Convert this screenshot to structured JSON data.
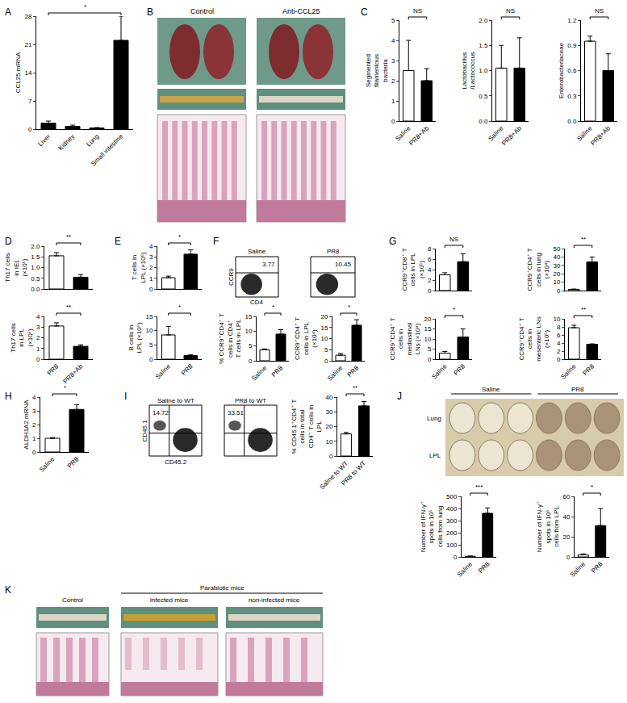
{
  "chart_data": [
    {
      "type": "bar",
      "y_label": "CCL25 mRNA",
      "categories": [
        "Liver",
        "Kidney",
        "Lung",
        "Small intestine"
      ],
      "values": [
        1.5,
        0.7,
        0.3,
        22
      ],
      "errors": [
        0.5,
        0.3,
        0.1,
        6
      ],
      "color": "#000000",
      "ylim": [
        0,
        28
      ],
      "yticks": [
        0,
        7,
        14,
        21,
        28
      ],
      "annotations": [
        "*"
      ]
    },
    {
      "type": "bar",
      "y_label": "Segmented filamentous bacteria",
      "categories": [
        "Saline",
        "PR8+Ab"
      ],
      "values": [
        2.5,
        2.0
      ],
      "errors": [
        1.5,
        0.6
      ],
      "colors": [
        "#ffffff",
        "#000000"
      ],
      "ylim": [
        0,
        5
      ],
      "yticks": [
        0,
        1,
        2,
        3,
        4,
        5
      ],
      "annotations": [
        "NS"
      ]
    },
    {
      "type": "bar",
      "y_label": "Lactobacillus/Lactococcus",
      "categories": [
        "Saline",
        "PR8+Ab"
      ],
      "values": [
        1.05,
        1.05
      ],
      "errors": [
        0.45,
        0.6
      ],
      "colors": [
        "#ffffff",
        "#000000"
      ],
      "ylim": [
        0,
        2
      ],
      "yticks": [
        {
          "value": 0,
          "label": "0.0"
        },
        0.5,
        {
          "value": 1,
          "label": "1.0"
        },
        1.5,
        {
          "value": 2,
          "label": "2.0"
        }
      ],
      "annotations": [
        "NS"
      ]
    },
    {
      "type": "bar",
      "y_label": "Enterobacteriaceae",
      "categories": [
        "Saline",
        "PR8+Ab"
      ],
      "values": [
        0.95,
        0.6
      ],
      "errors": [
        0.06,
        0.2
      ],
      "colors": [
        "#ffffff",
        "#000000"
      ],
      "ylim": [
        0,
        1.2
      ],
      "yticks": [
        {
          "value": 0,
          "label": "0.0"
        },
        0.3,
        0.6,
        0.9,
        1.2
      ],
      "annotations": [
        "NS"
      ]
    },
    {
      "type": "bar",
      "y_label": "Th17 cells in IEL (×10⁵)",
      "categories": [
        "PR8",
        "PR8+Ab"
      ],
      "values": [
        1.55,
        0.55
      ],
      "errors": [
        0.15,
        0.12
      ],
      "colors": [
        "#ffffff",
        "#000000"
      ],
      "ylim": [
        0,
        2
      ],
      "yticks": [
        {
          "value": 0,
          "label": "0.0"
        },
        0.5,
        {
          "value": 1,
          "label": "1.0"
        },
        1.5,
        {
          "value": 2,
          "label": "2.0"
        }
      ],
      "tick_labels": "y",
      "annotations": [
        "**"
      ]
    },
    {
      "type": "bar",
      "y_label": "Th17 cells in LPL (×10⁵)",
      "categories": [
        "PR8",
        "PR8+Ab"
      ],
      "values": [
        3.1,
        1.2
      ],
      "errors": [
        0.3,
        0.15
      ],
      "colors": [
        "#ffffff",
        "#000000"
      ],
      "ylim": [
        0,
        4
      ],
      "yticks": [
        0,
        1,
        2,
        3,
        4
      ],
      "annotations": [
        "**"
      ]
    },
    {
      "type": "bar",
      "y_label": "T cells in LPL (×10⁶)",
      "categories": [
        "Saline",
        "PR8"
      ],
      "values": [
        1.05,
        3.25
      ],
      "errors": [
        0.15,
        0.4
      ],
      "colors": [
        "#ffffff",
        "#000000"
      ],
      "ylim": [
        0,
        4
      ],
      "yticks": [
        0,
        1,
        2,
        3,
        4
      ],
      "tick_labels": "y",
      "annotations": [
        "*"
      ]
    },
    {
      "type": "bar",
      "y_label": "B cells in LPL (×10⁵)",
      "categories": [
        "Saline",
        "PR8"
      ],
      "values": [
        8.5,
        1.3
      ],
      "errors": [
        3,
        0.3
      ],
      "colors": [
        "#ffffff",
        "#000000"
      ],
      "ylim": [
        0,
        15
      ],
      "yticks": [
        0,
        5,
        10,
        15
      ],
      "annotations": [
        "*"
      ]
    },
    {
      "type": "bar",
      "y_label": "% CCR9⁺CD4⁺ T cells in CD4⁺ T cells in LPL",
      "categories": [
        "Saline",
        "PR8"
      ],
      "values": [
        3.7,
        9
      ],
      "errors": [
        0.3,
        1.5
      ],
      "colors": [
        "#ffffff",
        "#000000"
      ],
      "ylim": [
        0,
        15
      ],
      "yticks": [
        0,
        5,
        10,
        15
      ],
      "annotations": [
        "*"
      ]
    },
    {
      "type": "bar",
      "y_label": "CCR9⁺CD4⁺ T cells in LPL (×10⁴)",
      "categories": [
        "Saline",
        "PR8"
      ],
      "values": [
        2.5,
        16
      ],
      "errors": [
        0.8,
        2.5
      ],
      "colors": [
        "#ffffff",
        "#000000"
      ],
      "ylim": [
        0,
        20
      ],
      "yticks": [
        0,
        5,
        10,
        15,
        20
      ],
      "annotations": [
        "*"
      ]
    },
    {
      "type": "bar",
      "y_label": "CCR9⁺CD8⁺ T cells in LPL (×10⁵)",
      "categories": [
        "Saline",
        "PR8"
      ],
      "values": [
        3,
        5.5
      ],
      "errors": [
        0.4,
        1.5
      ],
      "colors": [
        "#ffffff",
        "#000000"
      ],
      "ylim": [
        0,
        8
      ],
      "yticks": [
        0,
        2,
        4,
        6,
        8
      ],
      "tick_labels": "y",
      "annotations": [
        "NS"
      ]
    },
    {
      "type": "bar",
      "y_label": "CCR9⁺CD4⁺ T cells in lung (×10⁴)",
      "categories": [
        "Saline",
        "PR8"
      ],
      "values": [
        1.5,
        34
      ],
      "errors": [
        0.3,
        6
      ],
      "colors": [
        "#ffffff",
        "#000000"
      ],
      "ylim": [
        0,
        50
      ],
      "yticks": [
        0,
        10,
        20,
        30,
        40,
        50
      ],
      "tick_labels": "y",
      "annotations": [
        "**"
      ]
    },
    {
      "type": "bar",
      "y_label": "CCR9⁺CD4⁺ T cells in mediastinal LNs (×10⁴)",
      "categories": [
        "Saline",
        "PR8"
      ],
      "values": [
        3,
        11
      ],
      "errors": [
        0.8,
        4
      ],
      "colors": [
        "#ffffff",
        "#000000"
      ],
      "ylim": [
        0,
        20
      ],
      "yticks": [
        0,
        5,
        10,
        15,
        20
      ],
      "annotations": [
        "*"
      ]
    },
    {
      "type": "bar",
      "y_label": "CCR9⁺CD4⁺ T cells in mesenteric LNs (×10⁵)",
      "categories": [
        "Saline",
        "PR8"
      ],
      "values": [
        7.8,
        3.7
      ],
      "errors": [
        0.6,
        0.1
      ],
      "colors": [
        "#ffffff",
        "#000000"
      ],
      "ylim": [
        0,
        10
      ],
      "yticks": [
        0,
        2,
        4,
        6,
        8,
        10
      ],
      "annotations": [
        "**"
      ]
    },
    {
      "type": "bar",
      "y_label": "ALDH1A2 mRNA",
      "categories": [
        "Saline",
        "PR8"
      ],
      "values": [
        1,
        3.1
      ],
      "errors": [
        0.05,
        0.35
      ],
      "colors": [
        "#ffffff",
        "#000000"
      ],
      "ylim": [
        0,
        4
      ],
      "yticks": [
        0,
        1,
        2,
        3,
        4
      ],
      "annotations": [
        "*"
      ]
    },
    {
      "type": "bar",
      "y_label": "% CD45.1⁺CD4⁺ T cells in total CD4⁺ T cells in LPL",
      "categories": [
        "Saline to WT",
        "PR8 to WT"
      ],
      "values": [
        15,
        34
      ],
      "errors": [
        1,
        3
      ],
      "colors": [
        "#ffffff",
        "#000000"
      ],
      "ylim": [
        0,
        40
      ],
      "yticks": [
        0,
        10,
        20,
        30,
        40
      ],
      "annotations": [
        "**"
      ]
    },
    {
      "type": "bar",
      "y_label": "Number of IFN-γ⁺ spots in 10⁵ cells from lung",
      "categories": [
        "Saline",
        "PR8"
      ],
      "values": [
        5,
        360
      ],
      "errors": [
        2,
        45
      ],
      "colors": [
        "#ffffff",
        "#000000"
      ],
      "ylim": [
        0,
        500
      ],
      "yticks": [
        0,
        100,
        200,
        300,
        400,
        500
      ],
      "annotations": [
        "***"
      ]
    },
    {
      "type": "bar",
      "y_label": "Number of IFN-γ⁺ spots in 10⁵ cells from LPL",
      "categories": [
        "Saline",
        "PR8"
      ],
      "values": [
        2,
        31
      ],
      "errors": [
        1,
        17
      ],
      "colors": [
        "#ffffff",
        "#000000"
      ],
      "ylim": [
        0,
        60
      ],
      "yticks": [
        0,
        20,
        40,
        60
      ],
      "annotations": [
        "*"
      ]
    }
  ],
  "figure": {
    "panel_labels": [
      "A",
      "B",
      "C",
      "D",
      "E",
      "F",
      "G",
      "H",
      "I",
      "J",
      "K"
    ],
    "B": {
      "columns": [
        "Control",
        "Anti-CCL25"
      ]
    },
    "F": {
      "x_label": "CD4",
      "y_label": "CCR9",
      "plots": [
        {
          "title": "Saline",
          "percent": 3.77
        },
        {
          "title": "PR8",
          "percent": 10.45
        }
      ]
    },
    "I": {
      "x_label": "CD45.2",
      "y_label": "CD45.1",
      "plots": [
        {
          "title": "Saline to WT",
          "percent": 14.72
        },
        {
          "title": "PR8 to WT",
          "percent": 33.51
        }
      ]
    },
    "J": {
      "columns": [
        "Saline",
        "PR8"
      ],
      "rows": [
        "Lung",
        "LPL"
      ]
    },
    "K": {
      "control": "Control",
      "group": "Parabiotic mice",
      "columns": [
        "infected mice",
        "non-infected mice"
      ]
    }
  }
}
